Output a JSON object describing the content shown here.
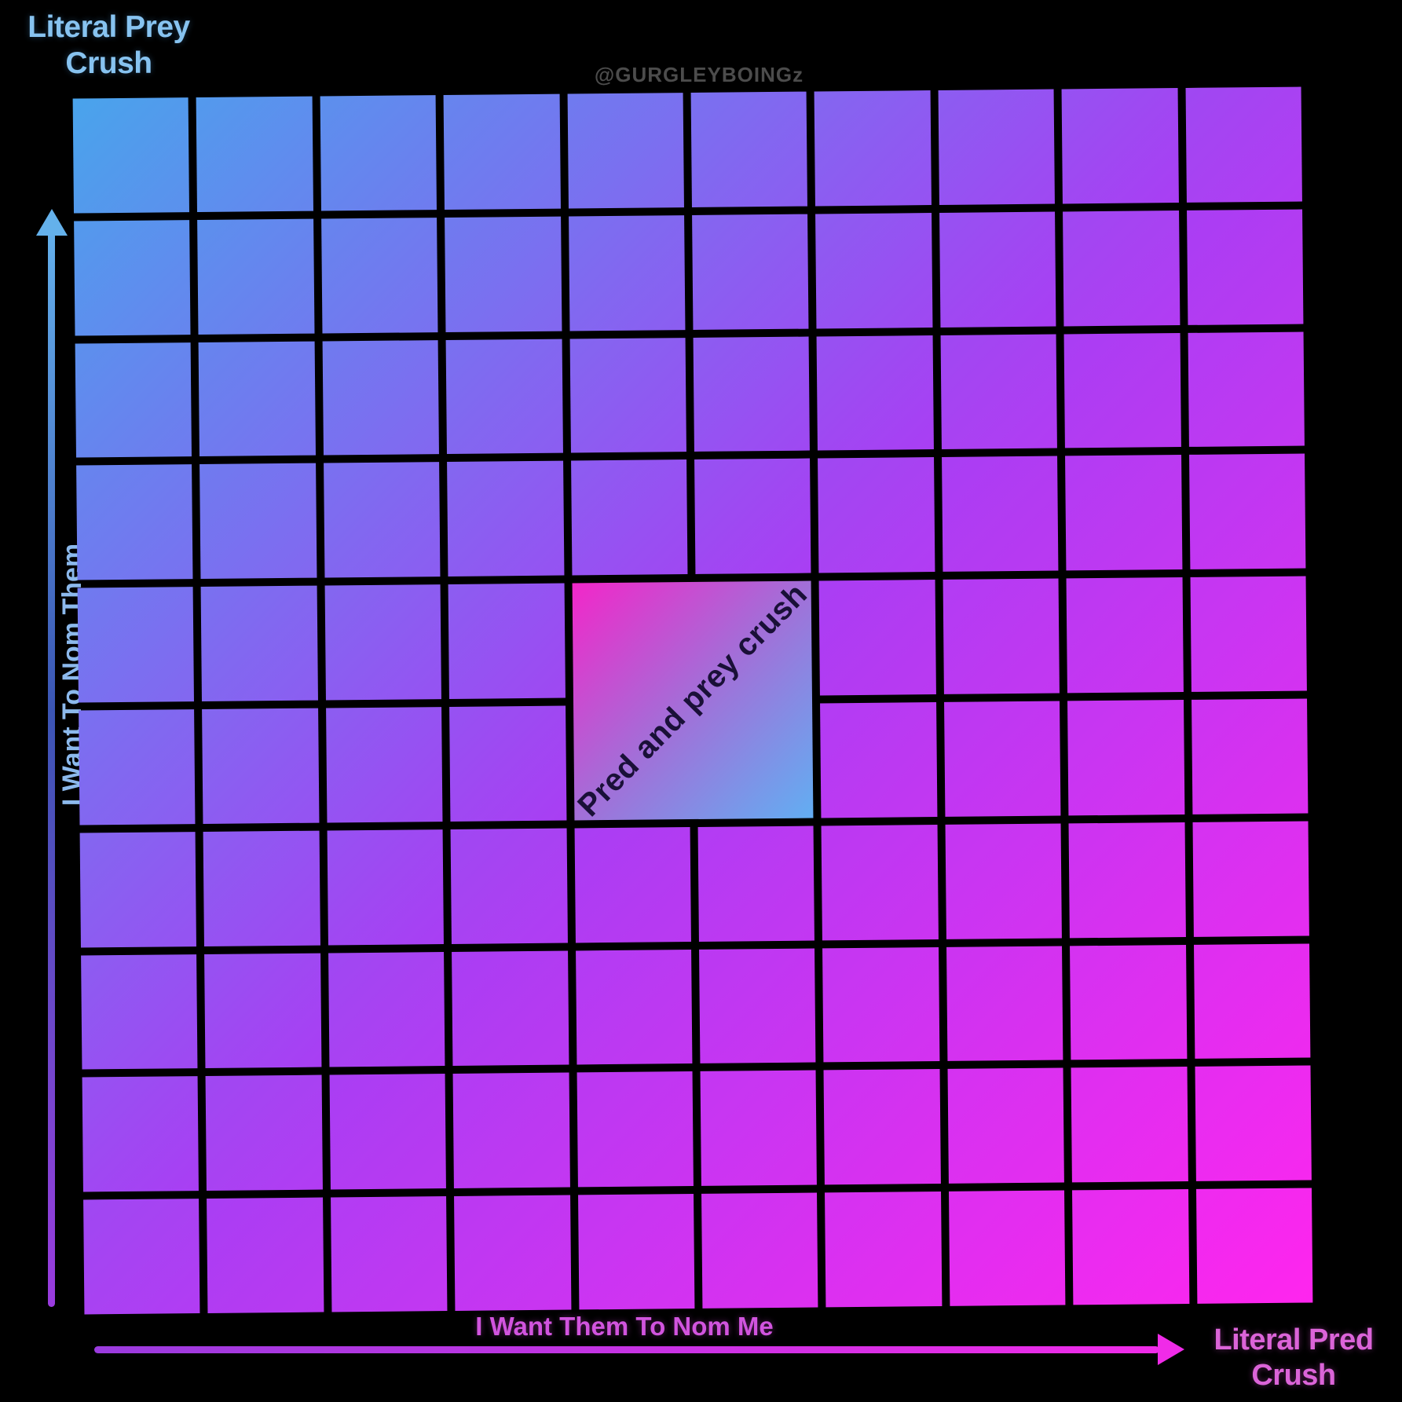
{
  "chart_data": {
    "type": "heatmap",
    "watermark": "@GURGLEYBOINGz",
    "xlabel": "I Want Them To Nom Me",
    "ylabel": "I Want To Nom Them",
    "corner_labels": {
      "top_left": "Literal Prey\nCrush",
      "bottom_right": "Literal Pred\nCrush"
    },
    "grid": {
      "rows": 10,
      "cols": 10,
      "line_color": "#000000"
    },
    "gradient_direction": "top-left to bottom-right",
    "gradient_stops": [
      "#49A4EC",
      "#A93EF3",
      "#FF25EE"
    ],
    "axis_colors": {
      "y_axis": "#64B1EB",
      "x_axis": "#F02BE8"
    },
    "label_colors": {
      "top_left_label": "#87C3F0",
      "bottom_right_label": "#DB64D8",
      "ylabel": "#8CB9EC",
      "xlabel": "#D154DE",
      "watermark": "#4C4C4C"
    },
    "center_cell": {
      "label": "Pred and prey crush",
      "row_start": 5,
      "col_start": 5,
      "row_span": 2,
      "col_span": 2,
      "gradient_stops": [
        "#F227C9",
        "#A26FD8",
        "#62AEF2"
      ],
      "label_color": "#1A1038",
      "label_rotation_deg": -45
    }
  }
}
